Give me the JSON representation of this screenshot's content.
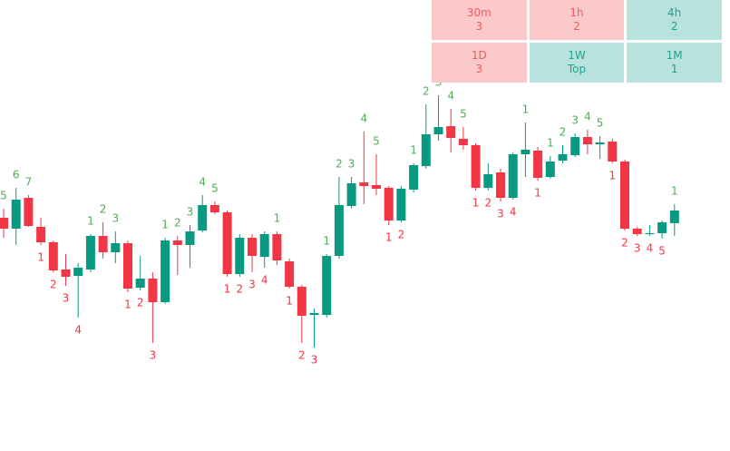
{
  "chart_data": {
    "type": "candlestick",
    "ylim": [
      0,
      497
    ],
    "up_color": "#089981",
    "down_color": "#f23645",
    "open": [
      257,
      245,
      279,
      247,
      230,
      200,
      193,
      200,
      237,
      219,
      229,
      180,
      190,
      164,
      232,
      227,
      243,
      271,
      263,
      195,
      235,
      214,
      239,
      209,
      181,
      150,
      150,
      215,
      270,
      296,
      293,
      290,
      254,
      288,
      314,
      349,
      358,
      344,
      337,
      290,
      307,
      279,
      327,
      331,
      302,
      320,
      326,
      346,
      338,
      341,
      319,
      245,
      239,
      240,
      251
    ],
    "high": [
      267,
      290,
      282,
      257,
      232,
      217,
      207,
      239,
      252,
      242,
      232,
      215,
      197,
      235,
      237,
      249,
      282,
      275,
      265,
      239,
      239,
      242,
      242,
      212,
      183,
      157,
      217,
      302,
      302,
      352,
      327,
      292,
      292,
      317,
      382,
      392,
      377,
      357,
      339,
      317,
      311,
      329,
      362,
      335,
      325,
      337,
      350,
      354,
      347,
      344,
      321,
      247,
      249,
      254,
      272
    ],
    "low": [
      235,
      227,
      247,
      227,
      197,
      182,
      147,
      197,
      212,
      207,
      175,
      177,
      119,
      162,
      194,
      202,
      241,
      261,
      192,
      192,
      197,
      202,
      205,
      179,
      119,
      114,
      147,
      212,
      267,
      272,
      282,
      249,
      252,
      285,
      311,
      342,
      329,
      332,
      287,
      287,
      275,
      277,
      302,
      298,
      300,
      317,
      324,
      327,
      322,
      317,
      243,
      237,
      237,
      234,
      237
    ],
    "close": [
      245,
      277,
      248,
      230,
      199,
      192,
      202,
      237,
      219,
      229,
      179,
      190,
      164,
      232,
      227,
      242,
      271,
      263,
      195,
      235,
      215,
      239,
      210,
      181,
      149,
      152,
      215,
      271,
      295,
      292,
      289,
      254,
      289,
      315,
      349,
      357,
      345,
      337,
      290,
      305,
      279,
      327,
      332,
      301,
      319,
      327,
      346,
      338,
      340,
      319,
      245,
      239,
      240,
      252,
      265
    ],
    "up_counts": [
      5,
      6,
      7,
      null,
      null,
      null,
      null,
      1,
      2,
      3,
      null,
      null,
      null,
      1,
      2,
      3,
      4,
      5,
      null,
      null,
      null,
      null,
      1,
      null,
      null,
      null,
      1,
      2,
      3,
      4,
      5,
      null,
      null,
      1,
      2,
      3,
      4,
      5,
      null,
      null,
      null,
      null,
      1,
      null,
      1,
      2,
      3,
      4,
      5,
      null,
      null,
      null,
      null,
      null,
      1
    ],
    "down_counts": [
      null,
      null,
      null,
      1,
      2,
      3,
      4,
      null,
      null,
      null,
      1,
      2,
      3,
      null,
      null,
      null,
      null,
      null,
      1,
      2,
      3,
      4,
      null,
      1,
      2,
      3,
      null,
      null,
      null,
      null,
      null,
      1,
      2,
      null,
      null,
      null,
      null,
      null,
      1,
      2,
      3,
      4,
      null,
      1,
      null,
      null,
      null,
      null,
      null,
      1,
      2,
      3,
      4,
      5,
      null
    ],
    "up_count_color": "#4caf50",
    "down_count_color": "#f23645"
  },
  "table": {
    "cells": [
      {
        "label": "30m",
        "value": "3",
        "bg": "#fbc9c9",
        "fg": "#f05a5f"
      },
      {
        "label": "1h",
        "value": "2",
        "bg": "#fbc9c9",
        "fg": "#f05a5f"
      },
      {
        "label": "4h",
        "value": "2",
        "bg": "#b7e2dd",
        "fg": "#22a090"
      },
      {
        "label": "1D",
        "value": "3",
        "bg": "#fbc9c9",
        "fg": "#f05a5f"
      },
      {
        "label": "1W",
        "value": "Top",
        "bg": "#b7e2dd",
        "fg": "#22a090"
      },
      {
        "label": "1M",
        "value": "1",
        "bg": "#b7e2dd",
        "fg": "#22a090"
      }
    ]
  }
}
